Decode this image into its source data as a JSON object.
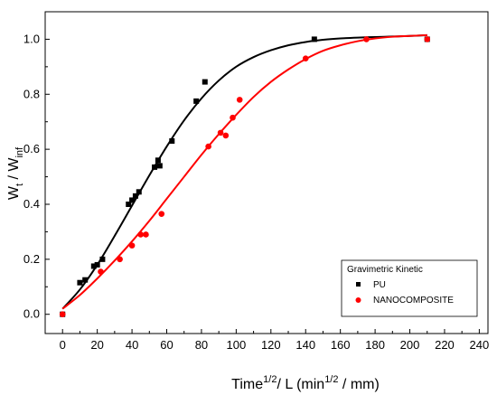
{
  "chart_data": {
    "type": "scatter",
    "title": "",
    "xlabel": {
      "base": "Time",
      "sup1": "1/2",
      "mid": "/ L  (min",
      "sup2": "1/2",
      "end": " / mm)"
    },
    "ylabel": {
      "base": "W",
      "sub1": "t",
      "mid": " / W",
      "sub2": "inf"
    },
    "xlim": [
      -10,
      245
    ],
    "ylim": [
      -0.07,
      1.1
    ],
    "xticks": [
      0,
      20,
      40,
      60,
      80,
      100,
      120,
      140,
      160,
      180,
      200,
      220,
      240
    ],
    "yticks": [
      0.0,
      0.2,
      0.4,
      0.6,
      0.8,
      1.0
    ],
    "xtick_labels": [
      "0",
      "20",
      "40",
      "60",
      "80",
      "100",
      "120",
      "140",
      "160",
      "180",
      "200",
      "220",
      "240"
    ],
    "ytick_labels": [
      "0.0",
      "0.2",
      "0.4",
      "0.6",
      "0.8",
      "1.0"
    ],
    "grid": false,
    "legend": {
      "title": "Gravimetric Kinetic",
      "placement": "bottom-right"
    },
    "series": [
      {
        "name": "PU",
        "marker": "square",
        "color": "#000000",
        "x": [
          0,
          10,
          13,
          18,
          20,
          23,
          38,
          40,
          42,
          44,
          53,
          55,
          56,
          63,
          77,
          82,
          145,
          210
        ],
        "y": [
          0.0,
          0.115,
          0.125,
          0.175,
          0.18,
          0.2,
          0.4,
          0.415,
          0.43,
          0.445,
          0.535,
          0.56,
          0.54,
          0.63,
          0.775,
          0.845,
          1.0,
          1.0
        ],
        "fit_x": [
          0,
          10,
          20,
          30,
          40,
          50,
          60,
          70,
          80,
          90,
          100,
          110,
          120,
          130,
          140,
          150,
          160,
          170,
          180,
          190,
          200,
          210
        ],
        "fit_y": [
          0.02,
          0.09,
          0.18,
          0.285,
          0.395,
          0.505,
          0.61,
          0.705,
          0.785,
          0.85,
          0.9,
          0.935,
          0.96,
          0.978,
          0.99,
          0.998,
          1.003,
          1.006,
          1.008,
          1.01,
          1.012,
          1.015
        ]
      },
      {
        "name": "NANOCOMPOSITE",
        "marker": "circle",
        "color": "#ff0000",
        "x": [
          0,
          22,
          33,
          40,
          45,
          48,
          57,
          84,
          91,
          94,
          98,
          102,
          140,
          175,
          210
        ],
        "y": [
          0.0,
          0.155,
          0.2,
          0.25,
          0.29,
          0.29,
          0.365,
          0.61,
          0.66,
          0.65,
          0.715,
          0.78,
          0.93,
          1.0,
          1.0
        ],
        "fit_x": [
          0,
          10,
          20,
          30,
          40,
          50,
          60,
          70,
          80,
          90,
          100,
          110,
          120,
          130,
          140,
          150,
          160,
          170,
          180,
          190,
          200,
          210
        ],
        "fit_y": [
          0.02,
          0.07,
          0.13,
          0.195,
          0.265,
          0.34,
          0.42,
          0.5,
          0.58,
          0.655,
          0.725,
          0.79,
          0.845,
          0.89,
          0.928,
          0.958,
          0.978,
          0.993,
          1.003,
          1.009,
          1.012,
          1.015
        ]
      }
    ]
  }
}
